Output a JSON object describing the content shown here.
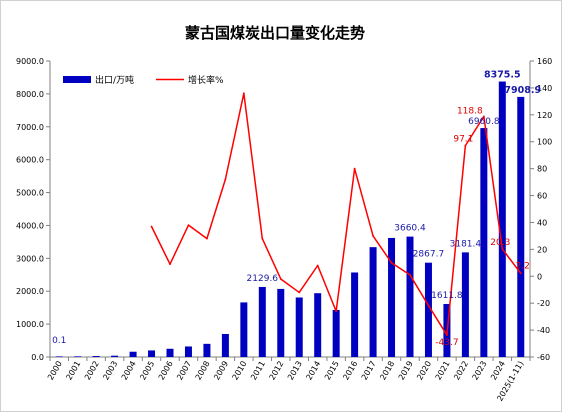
{
  "chart_data": {
    "type": "bar",
    "title": "蒙古国煤炭出口量变化走势",
    "categories": [
      "2000",
      "2001",
      "2002",
      "2003",
      "2004",
      "2005",
      "2006",
      "2007",
      "2008",
      "2009",
      "2010",
      "2011",
      "2012",
      "2013",
      "2014",
      "2015",
      "2016",
      "2017",
      "2018",
      "2019",
      "2020",
      "2021",
      "2022",
      "2023",
      "2024",
      "2025(1-11)"
    ],
    "series": [
      {
        "name": "出口/万吨",
        "type": "bar",
        "axis": "left",
        "color": "#0000c0",
        "values": [
          0.1,
          20,
          30,
          40,
          160,
          200,
          250,
          320,
          400,
          700,
          1660,
          2129.6,
          2070,
          1810,
          1940,
          1430,
          2570,
          3340,
          3620,
          3660.4,
          2867.7,
          1611.8,
          3181.4,
          6960.8,
          8375.5,
          7908.9
        ]
      },
      {
        "name": "增长率%",
        "type": "line",
        "axis": "right",
        "color": "#ff0000",
        "values": [
          null,
          null,
          null,
          null,
          null,
          37,
          9,
          38,
          28,
          72,
          136,
          28,
          -2,
          -12,
          8,
          -26,
          80,
          30,
          10,
          1.0,
          -21.7,
          -43.7,
          97.1,
          118.8,
          20.3,
          2.2
        ]
      }
    ],
    "bar_labels": [
      {
        "index": 0,
        "text": "0.1"
      },
      {
        "index": 11,
        "text": "2129.6"
      },
      {
        "index": 19,
        "text": "3660.4"
      },
      {
        "index": 20,
        "text": "2867.7"
      },
      {
        "index": 21,
        "text": "1611.8"
      },
      {
        "index": 22,
        "text": "3181.4"
      },
      {
        "index": 23,
        "text": "6960.8"
      },
      {
        "index": 24,
        "text": "8375.5"
      },
      {
        "index": 25,
        "text": "7908.9"
      }
    ],
    "line_labels": [
      {
        "index": 21,
        "text": "-43.7"
      },
      {
        "index": 22,
        "text": "97.1"
      },
      {
        "index": 23,
        "text": "118.8"
      },
      {
        "index": 24,
        "text": "20.3"
      },
      {
        "index": 25,
        "text": "2.2"
      }
    ],
    "y_left": {
      "min": 0,
      "max": 9000,
      "step": 1000,
      "tick_labels": [
        "0.0",
        "1000.0",
        "2000.0",
        "3000.0",
        "4000.0",
        "5000.0",
        "6000.0",
        "7000.0",
        "8000.0",
        "9000.0"
      ]
    },
    "y_right": {
      "min": -60,
      "max": 160,
      "step": 20,
      "tick_labels": [
        "-60",
        "-40",
        "-20",
        "0",
        "20",
        "40",
        "60",
        "80",
        "100",
        "120",
        "140",
        "160"
      ]
    },
    "legend": {
      "placement": "top-left"
    },
    "grid": false
  }
}
